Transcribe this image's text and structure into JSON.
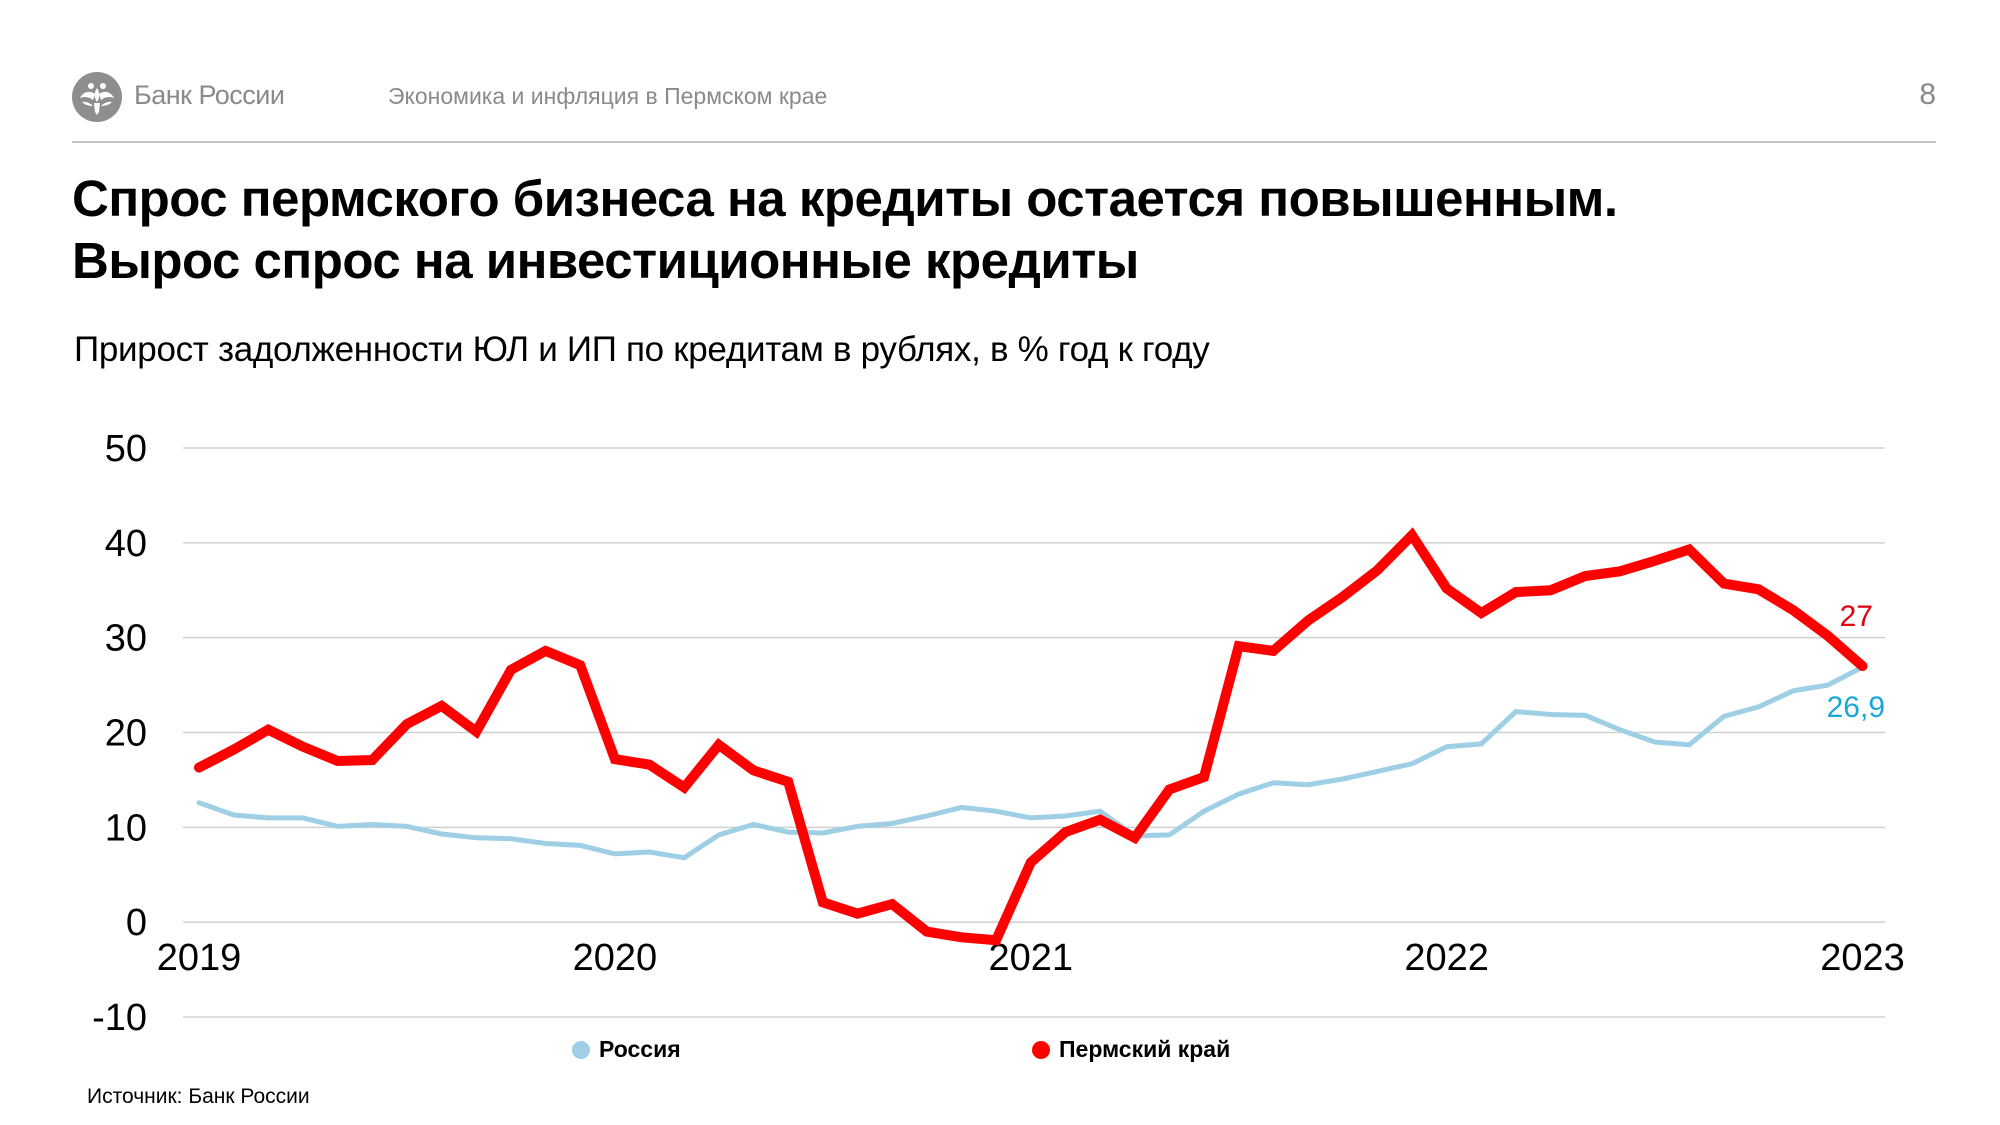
{
  "header": {
    "brand": "Банк России",
    "deck_title": "Экономика и инфляция в Пермском крае",
    "page_number": "8",
    "logo_icon": "double-headed-eagle-icon"
  },
  "title_lines": [
    "Спрос пермского бизнеса на кредиты остается повышенным.",
    "Вырос спрос на инвестиционные кредиты"
  ],
  "footer": {
    "source": "Источник: Банк России"
  },
  "chart_data": {
    "type": "line",
    "title": "Прирост задолженности ЮЛ и ИП по кредитам в рублях, в % год к году",
    "xlabel": "",
    "ylabel": "",
    "ylim": [
      -10,
      50
    ],
    "yticks": [
      50,
      40,
      30,
      20,
      10,
      0,
      -10
    ],
    "xtick_labels": [
      "2019",
      "2020",
      "2021",
      "2022",
      "2023"
    ],
    "x_start": "2019-01",
    "x_frequency": "monthly",
    "grid": true,
    "legend_position": "bottom",
    "series": [
      {
        "name": "Россия",
        "color": "#9ecfe4",
        "end_label": "26,9",
        "end_label_color": "#1aa5db",
        "values": [
          12.6,
          11.3,
          11.0,
          11.0,
          10.1,
          10.3,
          10.1,
          9.3,
          8.9,
          8.8,
          8.3,
          8.1,
          7.2,
          7.4,
          6.8,
          9.2,
          10.3,
          9.5,
          9.4,
          10.1,
          10.4,
          11.2,
          12.1,
          11.7,
          11.0,
          11.2,
          11.7,
          9.1,
          9.2,
          11.7,
          13.5,
          14.7,
          14.5,
          15.1,
          15.9,
          16.7,
          18.5,
          18.8,
          22.2,
          21.9,
          21.8,
          20.3,
          19.0,
          18.7,
          21.7,
          22.7,
          24.4,
          25.0,
          26.9
        ]
      },
      {
        "name": "Пермский край",
        "color": "#ff0000",
        "end_label": "27",
        "end_label_color": "#e3000f",
        "values": [
          16.3,
          18.2,
          20.3,
          18.5,
          17.0,
          17.1,
          20.9,
          22.8,
          20.1,
          26.6,
          28.6,
          27.1,
          17.2,
          16.6,
          14.2,
          18.7,
          16.0,
          14.8,
          2.1,
          0.9,
          1.9,
          -1.0,
          -1.6,
          -1.9,
          6.3,
          9.5,
          10.8,
          8.9,
          14.0,
          15.3,
          29.1,
          28.6,
          31.8,
          34.3,
          37.1,
          40.8,
          35.2,
          32.6,
          34.8,
          35.0,
          36.5,
          37.0,
          38.1,
          39.3,
          35.7,
          35.1,
          32.9,
          30.2,
          27.0
        ]
      }
    ]
  }
}
